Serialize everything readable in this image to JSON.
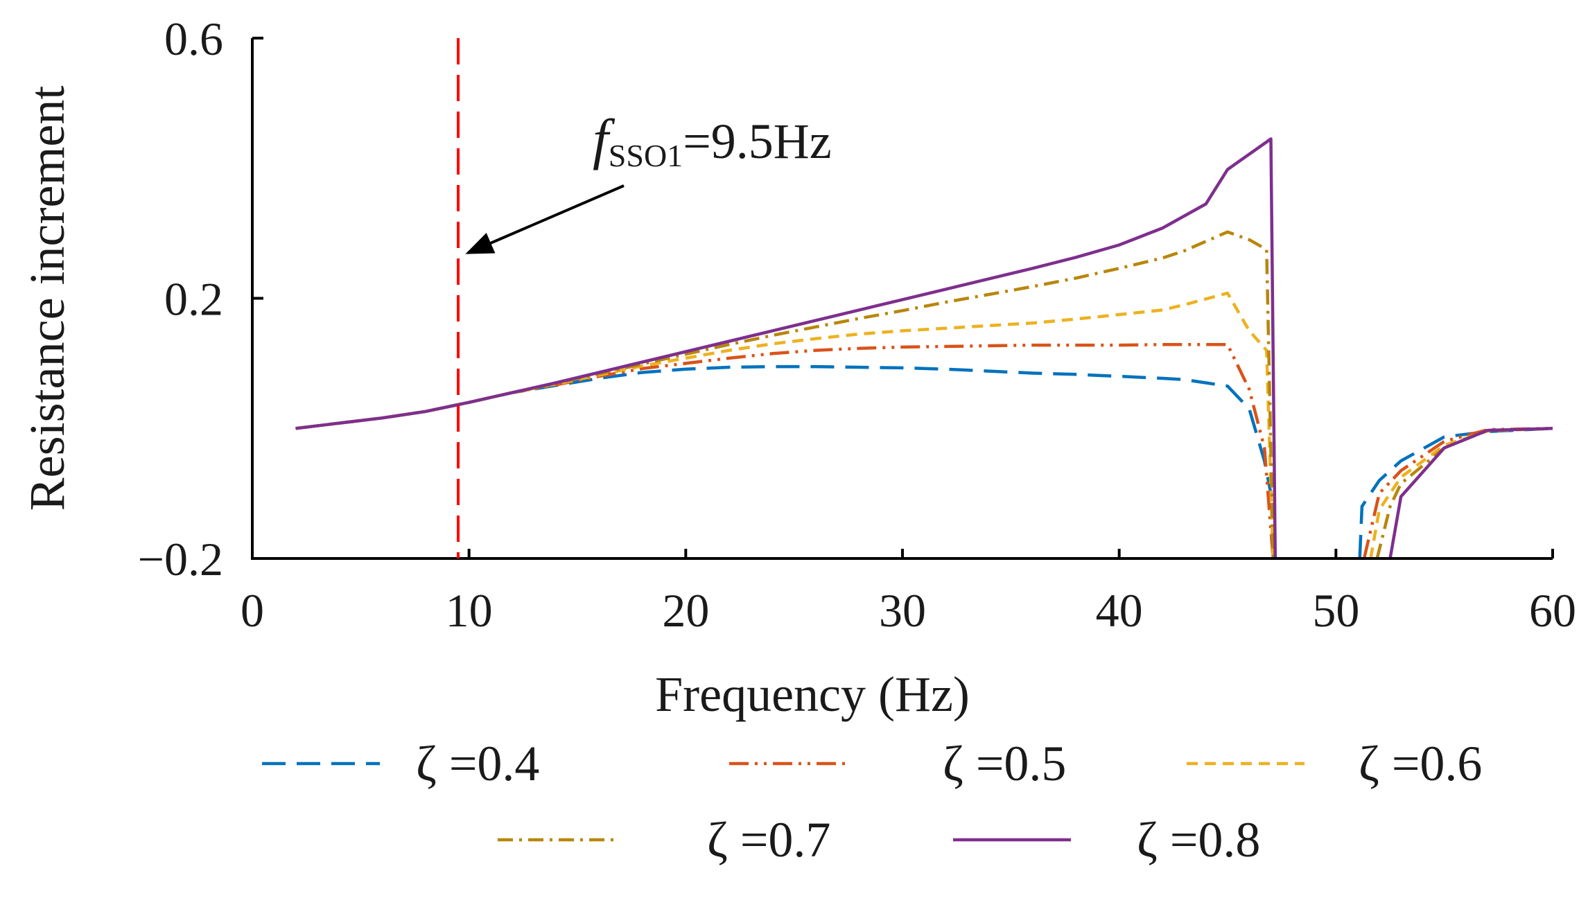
{
  "chart_data": {
    "type": "line",
    "xlabel": "Frequency (Hz)",
    "ylabel": "Resistance increment",
    "xlim": [
      0,
      60
    ],
    "ylim": [
      -0.2,
      0.6
    ],
    "xticks": [
      "0",
      "10",
      "20",
      "30",
      "40",
      "50",
      "60"
    ],
    "yticks": [
      "−0.2",
      "0.2",
      "0.6"
    ],
    "grid": false,
    "legend": "bottom",
    "annotation": {
      "italic": "f",
      "subscript": "SSO1",
      "value": "=9.5Hz",
      "x": 9.5
    },
    "series": [
      {
        "name": "ζ =0.4",
        "color": "#0072BD",
        "dash": "dashed",
        "segments": [
          [
            [
              2,
              0
            ],
            [
              4,
              0.008
            ],
            [
              6,
              0.016
            ],
            [
              8,
              0.026
            ],
            [
              10,
              0.04
            ],
            [
              12,
              0.055
            ],
            [
              14,
              0.066
            ],
            [
              16,
              0.077
            ],
            [
              18,
              0.086
            ],
            [
              20,
              0.091
            ],
            [
              22,
              0.094
            ],
            [
              24,
              0.095
            ],
            [
              26,
              0.095
            ],
            [
              28,
              0.094
            ],
            [
              30,
              0.093
            ],
            [
              32,
              0.091
            ],
            [
              34,
              0.088
            ],
            [
              36,
              0.085
            ],
            [
              38,
              0.083
            ],
            [
              40,
              0.08
            ],
            [
              42,
              0.077
            ],
            [
              43,
              0.075
            ],
            [
              44,
              0.07
            ],
            [
              45,
              0.065
            ],
            [
              46,
              0.03
            ],
            [
              46.7,
              -0.05
            ],
            [
              47,
              -0.1
            ]
          ],
          [
            [
              51.1,
              -0.2
            ],
            [
              51.2,
              -0.12
            ],
            [
              52,
              -0.08
            ],
            [
              53,
              -0.05
            ],
            [
              55,
              -0.013
            ],
            [
              57,
              -0.005
            ],
            [
              60,
              0
            ]
          ]
        ]
      },
      {
        "name": "ζ =0.5",
        "color": "#D95319",
        "dash": "dashdotdot",
        "segments": [
          [
            [
              2,
              0
            ],
            [
              4,
              0.008
            ],
            [
              6,
              0.016
            ],
            [
              8,
              0.026
            ],
            [
              10,
              0.04
            ],
            [
              12,
              0.055
            ],
            [
              14,
              0.067
            ],
            [
              16,
              0.08
            ],
            [
              18,
              0.092
            ],
            [
              20,
              0.1
            ],
            [
              22,
              0.108
            ],
            [
              24,
              0.115
            ],
            [
              26,
              0.12
            ],
            [
              28,
              0.123
            ],
            [
              30,
              0.125
            ],
            [
              32,
              0.126
            ],
            [
              34,
              0.127
            ],
            [
              36,
              0.128
            ],
            [
              38,
              0.128
            ],
            [
              40,
              0.128
            ],
            [
              42,
              0.129
            ],
            [
              43,
              0.129
            ],
            [
              45,
              0.129
            ],
            [
              46,
              0.06
            ],
            [
              46.7,
              -0.03
            ],
            [
              47.1,
              -0.2
            ]
          ],
          [
            [
              51.3,
              -0.2
            ],
            [
              52,
              -0.1
            ],
            [
              53,
              -0.065
            ],
            [
              55,
              -0.02
            ],
            [
              57,
              -0.002
            ],
            [
              60,
              0
            ]
          ]
        ]
      },
      {
        "name": "ζ =0.6",
        "color": "#EDB120",
        "dash": "shortdash",
        "segments": [
          [
            [
              2,
              0
            ],
            [
              4,
              0.008
            ],
            [
              6,
              0.016
            ],
            [
              8,
              0.026
            ],
            [
              10,
              0.04
            ],
            [
              12,
              0.055
            ],
            [
              14,
              0.068
            ],
            [
              16,
              0.082
            ],
            [
              18,
              0.096
            ],
            [
              20,
              0.108
            ],
            [
              22,
              0.12
            ],
            [
              24,
              0.13
            ],
            [
              26,
              0.138
            ],
            [
              28,
              0.145
            ],
            [
              30,
              0.15
            ],
            [
              32,
              0.154
            ],
            [
              34,
              0.158
            ],
            [
              36,
              0.162
            ],
            [
              38,
              0.168
            ],
            [
              40,
              0.175
            ],
            [
              42,
              0.182
            ],
            [
              43,
              0.19
            ],
            [
              45,
              0.208
            ],
            [
              46,
              0.15
            ],
            [
              46.8,
              0.12
            ],
            [
              47.1,
              -0.2
            ]
          ],
          [
            [
              51.6,
              -0.2
            ],
            [
              52,
              -0.125
            ],
            [
              53,
              -0.075
            ],
            [
              55,
              -0.026
            ],
            [
              57,
              -0.004
            ],
            [
              60,
              0
            ]
          ]
        ]
      },
      {
        "name": "ζ =0.7",
        "color": "#B8860B",
        "dash": "dashdot",
        "segments": [
          [
            [
              2,
              0
            ],
            [
              4,
              0.008
            ],
            [
              6,
              0.016
            ],
            [
              8,
              0.026
            ],
            [
              10,
              0.04
            ],
            [
              12,
              0.055
            ],
            [
              14,
              0.069
            ],
            [
              16,
              0.084
            ],
            [
              18,
              0.099
            ],
            [
              20,
              0.114
            ],
            [
              22,
              0.129
            ],
            [
              24,
              0.143
            ],
            [
              26,
              0.156
            ],
            [
              28,
              0.169
            ],
            [
              30,
              0.181
            ],
            [
              32,
              0.194
            ],
            [
              34,
              0.206
            ],
            [
              36,
              0.218
            ],
            [
              38,
              0.231
            ],
            [
              40,
              0.246
            ],
            [
              42,
              0.262
            ],
            [
              43,
              0.273
            ],
            [
              45,
              0.302
            ],
            [
              46,
              0.29
            ],
            [
              46.8,
              0.275
            ],
            [
              47.1,
              -0.2
            ]
          ],
          [
            [
              51.9,
              -0.2
            ],
            [
              52.5,
              -0.12
            ],
            [
              53,
              -0.085
            ],
            [
              55,
              -0.03
            ],
            [
              57,
              -0.003
            ],
            [
              60,
              0
            ]
          ]
        ]
      },
      {
        "name": "ζ =0.8",
        "color": "#7E2F8E",
        "dash": "solid",
        "segments": [
          [
            [
              2,
              0
            ],
            [
              4,
              0.008
            ],
            [
              6,
              0.016
            ],
            [
              8,
              0.026
            ],
            [
              10,
              0.04
            ],
            [
              12,
              0.055
            ],
            [
              14,
              0.07
            ],
            [
              16,
              0.086
            ],
            [
              18,
              0.102
            ],
            [
              20,
              0.118
            ],
            [
              22,
              0.134
            ],
            [
              24,
              0.15
            ],
            [
              26,
              0.166
            ],
            [
              28,
              0.182
            ],
            [
              30,
              0.198
            ],
            [
              32,
              0.214
            ],
            [
              34,
              0.23
            ],
            [
              36,
              0.246
            ],
            [
              38,
              0.263
            ],
            [
              40,
              0.282
            ],
            [
              42,
              0.308
            ],
            [
              44,
              0.345
            ],
            [
              45,
              0.398
            ],
            [
              47,
              0.445
            ],
            [
              47.2,
              -0.2
            ]
          ],
          [
            [
              52.5,
              -0.2
            ],
            [
              53,
              -0.105
            ],
            [
              55,
              -0.03
            ],
            [
              57,
              -0.003
            ],
            [
              60,
              0
            ]
          ]
        ]
      }
    ]
  }
}
